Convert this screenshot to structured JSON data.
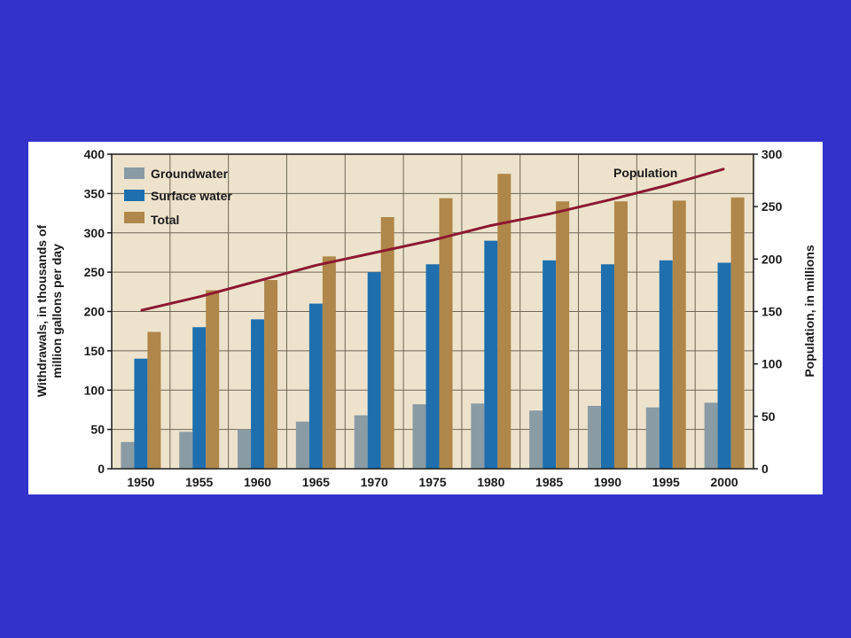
{
  "colors": {
    "slide_background": "#3333cc",
    "plot_background": "#ede3cc",
    "grid": "#6e6756",
    "groundwater": "#8a9ba4",
    "surface_water": "#1f6fae",
    "total": "#b0874a",
    "population_line": "#8c1830"
  },
  "chart_data": {
    "type": "bar",
    "categories": [
      "1950",
      "1955",
      "1960",
      "1965",
      "1970",
      "1975",
      "1980",
      "1985",
      "1990",
      "1995",
      "2000"
    ],
    "series": [
      {
        "name": "Groundwater",
        "color": "#8a9ba4",
        "values": [
          34,
          47,
          50,
          60,
          68,
          82,
          83,
          74,
          80,
          78,
          84
        ]
      },
      {
        "name": "Surface water",
        "color": "#1f6fae",
        "values": [
          140,
          180,
          190,
          210,
          250,
          260,
          290,
          265,
          260,
          265,
          262
        ]
      },
      {
        "name": "Total",
        "color": "#b0874a",
        "values": [
          174,
          227,
          240,
          270,
          320,
          344,
          375,
          340,
          340,
          341,
          345
        ]
      }
    ],
    "line_series": {
      "name": "Population",
      "color": "#8c1830",
      "axis": "right",
      "values": [
        151,
        164,
        179,
        194,
        206,
        218,
        232,
        243,
        256,
        270,
        286
      ]
    },
    "ylim": [
      0,
      400
    ],
    "yticks": [
      0,
      50,
      100,
      150,
      200,
      250,
      300,
      350,
      400
    ],
    "ylabel_line1": "Withdrawals, in thousands of",
    "ylabel_line2": "million gallons per day",
    "y2lim": [
      0,
      300
    ],
    "y2ticks": [
      0,
      50,
      100,
      150,
      200,
      250,
      300
    ],
    "y2label": "Population, in millions",
    "legend": {
      "placement": "top-left",
      "entries": [
        "Groundwater",
        "Surface water",
        "Total"
      ]
    },
    "annotations": [
      {
        "text": "Population"
      }
    ],
    "grid": true
  }
}
